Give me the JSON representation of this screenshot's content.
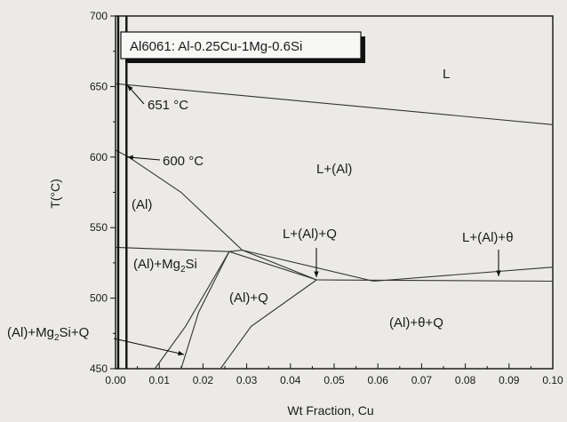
{
  "chart_data": {
    "type": "line",
    "title": "Al6061: Al-0.25Cu-1Mg-0.6Si",
    "xlabel": "Wt Fraction, Cu",
    "ylabel": "T(°C)",
    "xlim": [
      0.0,
      0.1
    ],
    "ylim": [
      450,
      700
    ],
    "xticks": [
      "0.00",
      "0.01",
      "0.02",
      "0.03",
      "0.04",
      "0.05",
      "0.06",
      "0.07",
      "0.08",
      "0.09",
      "0.10"
    ],
    "yticks": [
      "450",
      "500",
      "550",
      "600",
      "650",
      "700"
    ],
    "grid": false,
    "lines": [
      {
        "id": "liquidus",
        "points": [
          [
            0.0,
            652
          ],
          [
            0.1,
            623
          ]
        ]
      },
      {
        "id": "al-solidus",
        "points": [
          [
            0.0,
            605
          ],
          [
            0.003,
            600
          ],
          [
            0.015,
            575
          ],
          [
            0.029,
            534
          ]
        ]
      },
      {
        "id": "mg2si-solvus-top",
        "points": [
          [
            0.0,
            536
          ],
          [
            0.026,
            533
          ]
        ]
      },
      {
        "id": "l-al-q-upper",
        "points": [
          [
            0.026,
            533
          ],
          [
            0.029,
            534
          ],
          [
            0.046,
            513
          ]
        ]
      },
      {
        "id": "l-al-q-lower",
        "points": [
          [
            0.026,
            533
          ],
          [
            0.046,
            513
          ]
        ]
      },
      {
        "id": "l-al-theta-left",
        "points": [
          [
            0.029,
            534
          ],
          [
            0.059,
            512
          ]
        ]
      },
      {
        "id": "eutectic-line",
        "points": [
          [
            0.046,
            513
          ],
          [
            0.1,
            512
          ]
        ]
      },
      {
        "id": "theta-liquidus",
        "points": [
          [
            0.059,
            512
          ],
          [
            0.1,
            522
          ]
        ]
      },
      {
        "id": "mg2si-q-solvus-left",
        "points": [
          [
            0.009,
            450
          ],
          [
            0.016,
            480
          ],
          [
            0.026,
            533
          ]
        ]
      },
      {
        "id": "mg2si-q-solvus-right",
        "points": [
          [
            0.015,
            450
          ],
          [
            0.019,
            490
          ],
          [
            0.026,
            533
          ]
        ]
      },
      {
        "id": "al-q-solvus",
        "points": [
          [
            0.024,
            450
          ],
          [
            0.031,
            480
          ],
          [
            0.046,
            513
          ]
        ]
      }
    ],
    "marker_lines": [
      {
        "id": "alloy-composition",
        "x": 0.0025,
        "y_range": [
          450,
          700
        ],
        "style": "thick"
      },
      {
        "id": "left-border",
        "x": 0.0,
        "y_range": [
          450,
          700
        ],
        "style": "thick"
      }
    ],
    "annotations": [
      {
        "id": "t651",
        "text": "651 °C",
        "x": 0.0025,
        "y": 651
      },
      {
        "id": "t600",
        "text": "600 °C",
        "x": 0.0025,
        "y": 600
      }
    ],
    "regions": [
      {
        "id": "L",
        "text": "L"
      },
      {
        "id": "L-Al",
        "text": "L+(Al)"
      },
      {
        "id": "Al",
        "text": "(Al)"
      },
      {
        "id": "L-Al-Q",
        "text": "L+(Al)+Q"
      },
      {
        "id": "L-Al-theta",
        "text": "L+(Al)+θ"
      },
      {
        "id": "Al-Mg2Si",
        "text": "(Al)+Mg",
        "sub": "2",
        "tail": "Si"
      },
      {
        "id": "Al-Q",
        "text": "(Al)+Q"
      },
      {
        "id": "Al-theta-Q",
        "text": "(Al)+θ+Q"
      },
      {
        "id": "Al-Mg2Si-Q",
        "text": "(Al)+Mg",
        "sub": "2",
        "tail": "Si+Q"
      }
    ]
  }
}
